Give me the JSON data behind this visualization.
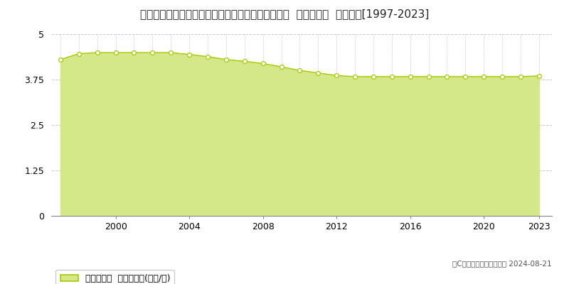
{
  "title": "宮崎県児湯郡新富町大字日置字今別府１６４０番５  基準地価格  地価推移[1997-2023]",
  "years": [
    1997,
    1998,
    1999,
    2000,
    2001,
    2002,
    2003,
    2004,
    2005,
    2006,
    2007,
    2008,
    2009,
    2010,
    2011,
    2012,
    2013,
    2014,
    2015,
    2016,
    2017,
    2018,
    2019,
    2020,
    2021,
    2022,
    2023
  ],
  "values": [
    4.3,
    4.46,
    4.49,
    4.49,
    4.49,
    4.49,
    4.49,
    4.44,
    4.38,
    4.3,
    4.25,
    4.19,
    4.1,
    4.0,
    3.93,
    3.86,
    3.83,
    3.83,
    3.83,
    3.83,
    3.83,
    3.83,
    3.83,
    3.83,
    3.83,
    3.83,
    3.85
  ],
  "ylim": [
    0,
    5
  ],
  "yticks": [
    0,
    1.25,
    2.5,
    3.75,
    5
  ],
  "ytick_labels": [
    "0",
    "1.25",
    "2.5",
    "3.75",
    "5"
  ],
  "xticks": [
    2000,
    2004,
    2008,
    2012,
    2016,
    2020,
    2023
  ],
  "line_color": "#a8c800",
  "fill_color": "#d4e88a",
  "marker_facecolor": "#ffffff",
  "marker_edgecolor": "#a8c800",
  "grid_color": "#bbbbbb",
  "background_color": "#ffffff",
  "plot_bg_color": "#ffffff",
  "legend_label": "基準地価格  平均坪単価(万円/坪)",
  "copyright_text": "（C）土地価格ドットコム 2024-08-21",
  "title_fontsize": 11,
  "legend_fontsize": 9,
  "tick_fontsize": 9
}
